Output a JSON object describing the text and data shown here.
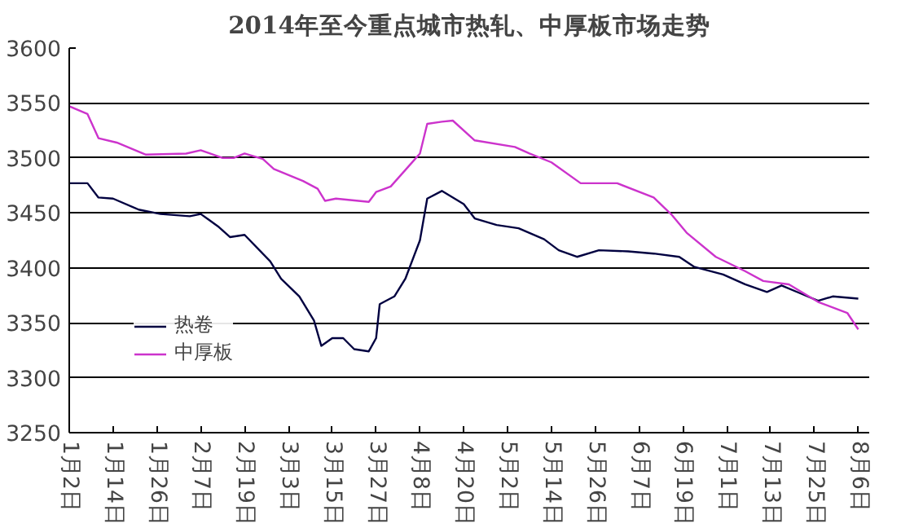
{
  "chart_data": {
    "type": "line",
    "title": "2014年至今重点城市热轧、中厚板市场走势",
    "xlim": [
      "2014-01-02",
      "2014-08-09"
    ],
    "xticks": [
      {
        "value": "2014-01-02",
        "label": "1月2日"
      },
      {
        "value": "2014-01-14",
        "label": "1月14日"
      },
      {
        "value": "2014-01-26",
        "label": "1月26日"
      },
      {
        "value": "2014-02-07",
        "label": "2月7日"
      },
      {
        "value": "2014-02-19",
        "label": "2月19日"
      },
      {
        "value": "2014-03-03",
        "label": "3月3日"
      },
      {
        "value": "2014-03-15",
        "label": "3月15日"
      },
      {
        "value": "2014-03-27",
        "label": "3月27日"
      },
      {
        "value": "2014-04-08",
        "label": "4月8日"
      },
      {
        "value": "2014-04-20",
        "label": "4月20日"
      },
      {
        "value": "2014-05-02",
        "label": "5月2日"
      },
      {
        "value": "2014-05-14",
        "label": "5月14日"
      },
      {
        "value": "2014-05-26",
        "label": "5月26日"
      },
      {
        "value": "2014-06-07",
        "label": "6月7日"
      },
      {
        "value": "2014-06-19",
        "label": "6月19日"
      },
      {
        "value": "2014-07-01",
        "label": "7月1日"
      },
      {
        "value": "2014-07-13",
        "label": "7月13日"
      },
      {
        "value": "2014-07-25",
        "label": "7月25日"
      },
      {
        "value": "2014-08-06",
        "label": "8月6日"
      }
    ],
    "ylim": [
      3250,
      3600
    ],
    "yticks": [
      3250,
      3300,
      3350,
      3400,
      3450,
      3500,
      3550,
      3600
    ],
    "grid": "y",
    "legend": "bottom left",
    "line_style": "solid",
    "marker": "none",
    "series": [
      {
        "name": "热卷",
        "color": "#000040",
        "x": [
          "2014-01-02",
          "2014-01-07",
          "2014-01-10",
          "2014-01-14",
          "2014-01-21",
          "2014-01-27",
          "2014-02-04",
          "2014-02-07",
          "2014-02-12",
          "2014-02-15",
          "2014-02-19",
          "2014-02-26",
          "2014-03-01",
          "2014-03-06",
          "2014-03-10",
          "2014-03-12",
          "2014-03-15",
          "2014-03-18",
          "2014-03-21",
          "2014-03-25",
          "2014-03-27",
          "2014-03-28",
          "2014-04-01",
          "2014-04-04",
          "2014-04-08",
          "2014-04-10",
          "2014-04-14",
          "2014-04-20",
          "2014-04-23",
          "2014-04-29",
          "2014-05-05",
          "2014-05-12",
          "2014-05-16",
          "2014-05-21",
          "2014-05-27",
          "2014-06-04",
          "2014-06-11",
          "2014-06-18",
          "2014-06-22",
          "2014-06-30",
          "2014-07-06",
          "2014-07-12",
          "2014-07-16",
          "2014-07-21",
          "2014-07-26",
          "2014-07-30",
          "2014-08-06"
        ],
        "values": [
          3477,
          3477,
          3464,
          3463,
          3453,
          3449,
          3447,
          3449,
          3437,
          3428,
          3430,
          3406,
          3390,
          3374,
          3352,
          3329,
          3336,
          3336,
          3326,
          3324,
          3336,
          3367,
          3374,
          3390,
          3425,
          3463,
          3470,
          3458,
          3445,
          3439,
          3436,
          3426,
          3416,
          3410,
          3416,
          3415,
          3413,
          3410,
          3401,
          3394,
          3385,
          3378,
          3384,
          3377,
          3370,
          3374,
          3372
        ]
      },
      {
        "name": "中厚板",
        "color": "#cc33cc",
        "x": [
          "2014-01-02",
          "2014-01-07",
          "2014-01-10",
          "2014-01-15",
          "2014-01-23",
          "2014-02-03",
          "2014-02-07",
          "2014-02-13",
          "2014-02-16",
          "2014-02-19",
          "2014-02-24",
          "2014-02-27",
          "2014-03-07",
          "2014-03-11",
          "2014-03-13",
          "2014-03-16",
          "2014-03-25",
          "2014-03-27",
          "2014-03-31",
          "2014-04-08",
          "2014-04-10",
          "2014-04-14",
          "2014-04-17",
          "2014-04-23",
          "2014-05-04",
          "2014-05-08",
          "2014-05-14",
          "2014-05-22",
          "2014-06-01",
          "2014-06-11",
          "2014-06-16",
          "2014-06-20",
          "2014-06-28",
          "2014-07-06",
          "2014-07-11",
          "2014-07-18",
          "2014-07-26",
          "2014-08-03",
          "2014-08-06"
        ],
        "values": [
          3547,
          3540,
          3518,
          3514,
          3503,
          3504,
          3507,
          3500,
          3500,
          3504,
          3499,
          3490,
          3479,
          3472,
          3461,
          3463,
          3460,
          3469,
          3474,
          3504,
          3531,
          3533,
          3534,
          3516,
          3510,
          3504,
          3496,
          3477,
          3477,
          3464,
          3448,
          3432,
          3410,
          3397,
          3388,
          3385,
          3369,
          3359,
          3344
        ]
      }
    ]
  }
}
